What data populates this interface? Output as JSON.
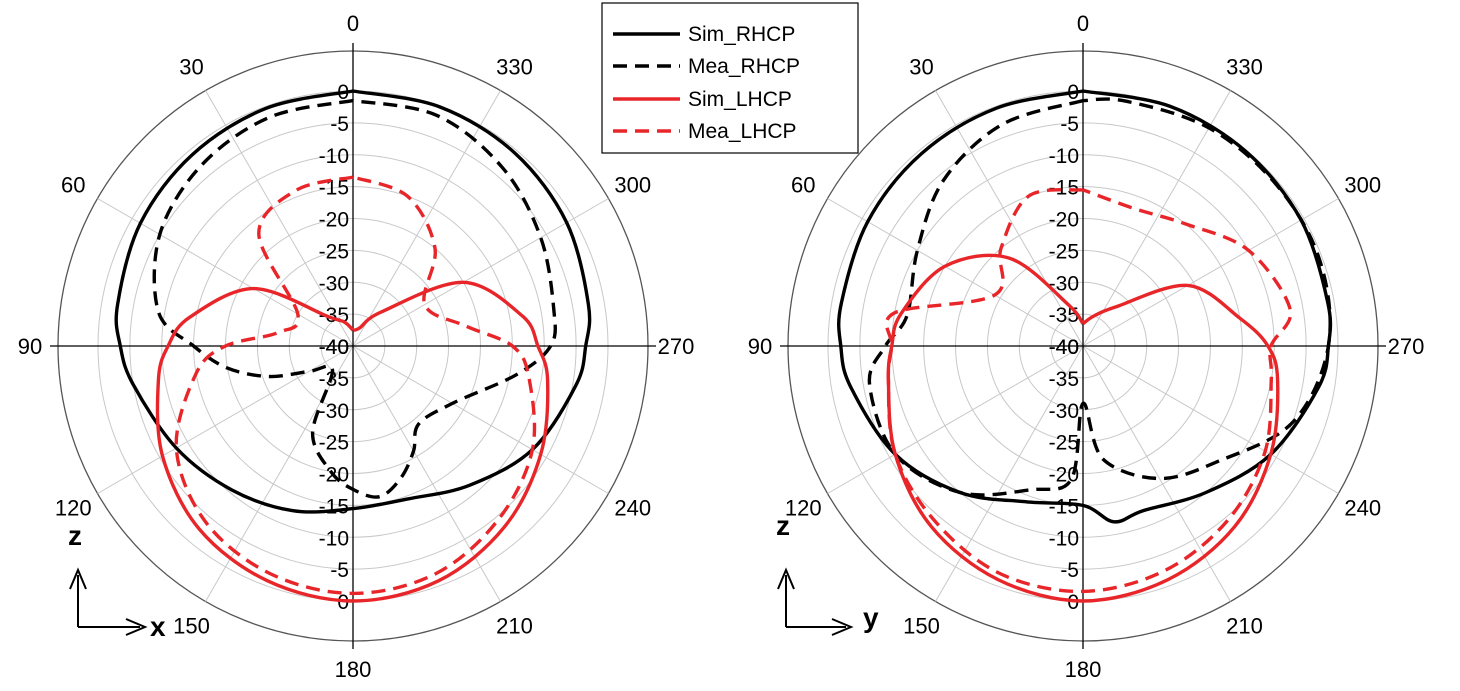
{
  "legend": {
    "position": "top-center",
    "entries": [
      {
        "label": "Sim_RHCP",
        "color": "#000000",
        "dash": "solid"
      },
      {
        "label": "Mea_RHCP",
        "color": "#000000",
        "dash": "dashed"
      },
      {
        "label": "Sim_LHCP",
        "color": "#e8262a",
        "dash": "solid"
      },
      {
        "label": "Mea_LHCP",
        "color": "#e8262a",
        "dash": "dashed"
      }
    ]
  },
  "chart_data": [
    {
      "type": "polar-line",
      "plane_axes": {
        "vertical": "z",
        "horizontal": "x"
      },
      "angle_labels": [
        "0",
        "30",
        "60",
        "90",
        "120",
        "150",
        "180",
        "210",
        "240",
        "270",
        "300",
        "330"
      ],
      "angle_direction": "counterclockwise",
      "r_range": [
        -40,
        0
      ],
      "r_tick_labels": [
        "0",
        "-5",
        "-10",
        "-15",
        "-20",
        "-25",
        "-30",
        "-35",
        "-40"
      ],
      "grid": true,
      "series": [
        {
          "name": "Sim_RHCP",
          "color": "#000000",
          "dash": "solid",
          "points": [
            [
              0,
              0
            ],
            [
              20,
              -0.3
            ],
            [
              40,
              -0.8
            ],
            [
              60,
              -1.5
            ],
            [
              80,
              -2.5
            ],
            [
              90,
              -3.5
            ],
            [
              100,
              -5
            ],
            [
              120,
              -8
            ],
            [
              140,
              -10.5
            ],
            [
              160,
              -12.5
            ],
            [
              180,
              -14.5
            ],
            [
              200,
              -14.5
            ],
            [
              220,
              -11.5
            ],
            [
              240,
              -7.5
            ],
            [
              260,
              -4.5
            ],
            [
              270,
              -3.5
            ],
            [
              280,
              -2.5
            ],
            [
              300,
              -1.3
            ],
            [
              320,
              -0.5
            ],
            [
              340,
              -0.1
            ],
            [
              360,
              0
            ]
          ]
        },
        {
          "name": "Mea_RHCP",
          "color": "#000000",
          "dash": "dashed",
          "points": [
            [
              0,
              -1.5
            ],
            [
              20,
              -1.8
            ],
            [
              40,
              -3
            ],
            [
              60,
              -5
            ],
            [
              80,
              -9
            ],
            [
              90,
              -15
            ],
            [
              100,
              -20
            ],
            [
              110,
              -26
            ],
            [
              120,
              -32
            ],
            [
              140,
              -35
            ],
            [
              155,
              -25
            ],
            [
              170,
              -20
            ],
            [
              180,
              -17.5
            ],
            [
              190,
              -16
            ],
            [
              200,
              -18
            ],
            [
              210,
              -21
            ],
            [
              220,
              -24
            ],
            [
              240,
              -22
            ],
            [
              260,
              -14
            ],
            [
              270,
              -9
            ],
            [
              280,
              -8
            ],
            [
              300,
              -6
            ],
            [
              320,
              -3.5
            ],
            [
              340,
              -1.5
            ],
            [
              360,
              -1.5
            ]
          ]
        },
        {
          "name": "Sim_LHCP",
          "color": "#e8262a",
          "dash": "solid",
          "points": [
            [
              0,
              -37.5
            ],
            [
              20,
              -36
            ],
            [
              40,
              -34
            ],
            [
              60,
              -22
            ],
            [
              80,
              -14
            ],
            [
              90,
              -11
            ],
            [
              100,
              -9
            ],
            [
              120,
              -5.5
            ],
            [
              140,
              -2.5
            ],
            [
              160,
              -0.8
            ],
            [
              180,
              0
            ],
            [
              200,
              -0.8
            ],
            [
              220,
              -3
            ],
            [
              240,
              -6
            ],
            [
              260,
              -9
            ],
            [
              270,
              -11
            ],
            [
              280,
              -13
            ],
            [
              300,
              -20
            ],
            [
              320,
              -33
            ],
            [
              340,
              -37
            ],
            [
              360,
              -37.5
            ]
          ]
        },
        {
          "name": "Mea_LHCP",
          "color": "#e8262a",
          "dash": "dashed",
          "points": [
            [
              0,
              -13.5
            ],
            [
              20,
              -14
            ],
            [
              40,
              -17
            ],
            [
              60,
              -30
            ],
            [
              80,
              -28
            ],
            [
              90,
              -20
            ],
            [
              100,
              -15
            ],
            [
              120,
              -8
            ],
            [
              140,
              -4
            ],
            [
              160,
              -2
            ],
            [
              180,
              -1.2
            ],
            [
              200,
              -2
            ],
            [
              220,
              -4.5
            ],
            [
              240,
              -7.5
            ],
            [
              260,
              -12
            ],
            [
              270,
              -15
            ],
            [
              280,
              -22
            ],
            [
              300,
              -27
            ],
            [
              320,
              -20
            ],
            [
              340,
              -15
            ],
            [
              360,
              -13.5
            ]
          ]
        }
      ]
    },
    {
      "type": "polar-line",
      "plane_axes": {
        "vertical": "z",
        "horizontal": "y"
      },
      "angle_labels": [
        "0",
        "30",
        "60",
        "90",
        "120",
        "150",
        "180",
        "210",
        "240",
        "270",
        "300",
        "330"
      ],
      "angle_direction": "counterclockwise",
      "r_range": [
        -40,
        0
      ],
      "r_tick_labels": [
        "0",
        "-5",
        "-10",
        "-15",
        "-20",
        "-25",
        "-30",
        "-35",
        "-40"
      ],
      "grid": true,
      "series": [
        {
          "name": "Sim_RHCP",
          "color": "#000000",
          "dash": "solid",
          "points": [
            [
              0,
              0
            ],
            [
              20,
              -0.3
            ],
            [
              40,
              -0.6
            ],
            [
              60,
              -1
            ],
            [
              80,
              -1.5
            ],
            [
              90,
              -2
            ],
            [
              100,
              -3
            ],
            [
              120,
              -6
            ],
            [
              140,
              -10
            ],
            [
              160,
              -14
            ],
            [
              180,
              -15
            ],
            [
              190,
              -12
            ],
            [
              200,
              -12.5
            ],
            [
              220,
              -10
            ],
            [
              240,
              -6
            ],
            [
              260,
              -2.5
            ],
            [
              270,
              -1.5
            ],
            [
              280,
              -1
            ],
            [
              300,
              -0.5
            ],
            [
              320,
              -0.2
            ],
            [
              340,
              0
            ],
            [
              360,
              0
            ]
          ]
        },
        {
          "name": "Mea_RHCP",
          "color": "#000000",
          "dash": "dashed",
          "points": [
            [
              0,
              -1.5
            ],
            [
              20,
              -3
            ],
            [
              40,
              -6
            ],
            [
              60,
              -10
            ],
            [
              80,
              -12
            ],
            [
              90,
              -9
            ],
            [
              100,
              -6
            ],
            [
              120,
              -6
            ],
            [
              140,
              -10
            ],
            [
              160,
              -16
            ],
            [
              175,
              -19
            ],
            [
              180,
              -31
            ],
            [
              190,
              -22
            ],
            [
              210,
              -16
            ],
            [
              230,
              -12
            ],
            [
              250,
              -5
            ],
            [
              270,
              -1.5
            ],
            [
              290,
              -0.5
            ],
            [
              310,
              -0.5
            ],
            [
              330,
              -0.5
            ],
            [
              350,
              -1
            ],
            [
              360,
              -1.5
            ]
          ]
        },
        {
          "name": "Sim_LHCP",
          "color": "#e8262a",
          "dash": "solid",
          "points": [
            [
              0,
              -36.5
            ],
            [
              20,
              -33
            ],
            [
              40,
              -22
            ],
            [
              60,
              -15
            ],
            [
              80,
              -11
            ],
            [
              90,
              -10
            ],
            [
              100,
              -9
            ],
            [
              120,
              -6
            ],
            [
              140,
              -3
            ],
            [
              160,
              -1
            ],
            [
              180,
              0
            ],
            [
              200,
              -1
            ],
            [
              220,
              -3
            ],
            [
              240,
              -6
            ],
            [
              260,
              -9
            ],
            [
              270,
              -11
            ],
            [
              280,
              -15
            ],
            [
              300,
              -21
            ],
            [
              320,
              -32
            ],
            [
              340,
              -35
            ],
            [
              360,
              -36.5
            ]
          ]
        },
        {
          "name": "Mea_LHCP",
          "color": "#e8262a",
          "dash": "dashed",
          "points": [
            [
              0,
              -15.5
            ],
            [
              20,
              -15
            ],
            [
              40,
              -20
            ],
            [
              60,
              -24
            ],
            [
              80,
              -10
            ],
            [
              90,
              -10
            ],
            [
              100,
              -9
            ],
            [
              120,
              -6
            ],
            [
              140,
              -4
            ],
            [
              160,
              -2
            ],
            [
              180,
              -1.5
            ],
            [
              200,
              -2.5
            ],
            [
              220,
              -4.5
            ],
            [
              240,
              -7
            ],
            [
              260,
              -10
            ],
            [
              270,
              -10.5
            ],
            [
              280,
              -7
            ],
            [
              300,
              -10
            ],
            [
              320,
              -15
            ],
            [
              340,
              -17
            ],
            [
              360,
              -15.5
            ]
          ]
        }
      ]
    }
  ]
}
